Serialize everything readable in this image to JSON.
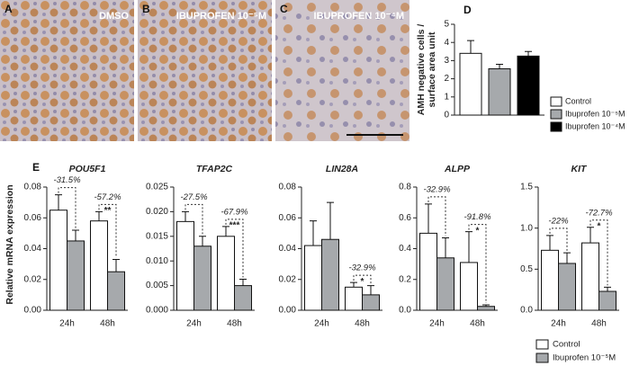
{
  "images": [
    {
      "letter": "A",
      "label": "DMSO"
    },
    {
      "letter": "B",
      "label": "IBUPROFEN 10⁻⁵M"
    },
    {
      "letter": "C",
      "label": "IBUPROFEN 10⁻⁴M"
    }
  ],
  "chart_data": [
    {
      "type": "bar",
      "panel": "D",
      "ylabel": [
        "AMH negative cells /",
        "surface area unit"
      ],
      "categories": [
        null
      ],
      "series": [
        {
          "name": "Control",
          "color": "#ffffff",
          "values": [
            3.4
          ],
          "errors": [
            0.7
          ]
        },
        {
          "name": "Ibuprofen 10⁻⁵M",
          "color": "#a6a9ac",
          "values": [
            2.55
          ],
          "errors": [
            0.25
          ]
        },
        {
          "name": "Ibuprofen 10⁻⁴M",
          "color": "#000000",
          "values": [
            3.25
          ],
          "errors": [
            0.25
          ]
        }
      ],
      "ylim": [
        0,
        5
      ],
      "yticks": [
        0,
        1,
        2,
        3,
        4,
        5
      ]
    },
    {
      "type": "bar-multiples",
      "panel": "E",
      "ylabel": "Relative mRNA expression",
      "categories": [
        "24h",
        "48h"
      ],
      "series": [
        {
          "name": "Control",
          "color": "#ffffff"
        },
        {
          "name": "Ibuprofen 10⁻⁵M",
          "color": "#a6a9ac"
        }
      ],
      "panels": [
        {
          "title": "POU5F1",
          "ylim": [
            0,
            0.08
          ],
          "yticks": [
            {
              "value": 0,
              "label": "0.00"
            },
            0.02,
            0.04,
            0.06,
            0.08
          ],
          "values": [
            [
              0.065,
              0.058
            ],
            [
              0.045,
              0.025
            ]
          ],
          "errors": [
            [
              0.01,
              0.006
            ],
            [
              0.007,
              0.008
            ]
          ],
          "change_labels": [
            "-31.5%",
            "-57.2%"
          ],
          "significance": [
            null,
            "**"
          ]
        },
        {
          "title": "TFAP2C",
          "ylim": [
            0,
            0.025
          ],
          "yticks": [
            {
              "value": 0,
              "label": "0.000"
            },
            0.005,
            {
              "value": 0.01,
              "label": "0.010"
            },
            0.015,
            {
              "value": 0.02,
              "label": "0.020"
            },
            0.025
          ],
          "values": [
            [
              0.018,
              0.015
            ],
            [
              0.013,
              0.005
            ]
          ],
          "errors": [
            [
              0.002,
              0.002
            ],
            [
              0.002,
              0.0013
            ]
          ],
          "change_labels": [
            "-27.5%",
            "-67.9%"
          ],
          "significance": [
            null,
            "***"
          ]
        },
        {
          "title": "LIN28A",
          "ylim": [
            0,
            0.08
          ],
          "yticks": [
            {
              "value": 0,
              "label": "0.00"
            },
            0.02,
            0.04,
            0.06,
            0.08
          ],
          "values": [
            [
              0.042,
              0.015
            ],
            [
              0.046,
              0.01
            ]
          ],
          "errors": [
            [
              0.016,
              0.003
            ],
            [
              0.024,
              0.006
            ]
          ],
          "change_labels": [
            null,
            "-32.9%"
          ],
          "significance": [
            null,
            "*"
          ]
        },
        {
          "title": "ALPP",
          "ylim": [
            0,
            0.8
          ],
          "yticks": [
            {
              "value": 0,
              "label": "0.0"
            },
            0.2,
            0.4,
            0.6,
            0.8
          ],
          "values": [
            [
              0.5,
              0.31
            ],
            [
              0.34,
              0.025
            ]
          ],
          "errors": [
            [
              0.19,
              0.2
            ],
            [
              0.13,
              0.01
            ]
          ],
          "change_labels": [
            "-32.9%",
            "-91.8%"
          ],
          "significance": [
            null,
            "*"
          ]
        },
        {
          "title": "KIT",
          "ylim": [
            0,
            1.5
          ],
          "yticks": [
            {
              "value": 0,
              "label": "0.0"
            },
            0.5,
            {
              "value": 1,
              "label": "1.0"
            },
            1.5
          ],
          "values": [
            [
              0.73,
              0.82
            ],
            [
              0.57,
              0.23
            ]
          ],
          "errors": [
            [
              0.18,
              0.19
            ],
            [
              0.13,
              0.05
            ]
          ],
          "change_labels": [
            "-22%",
            "-72.7%"
          ],
          "significance": [
            null,
            "*"
          ]
        }
      ]
    }
  ]
}
